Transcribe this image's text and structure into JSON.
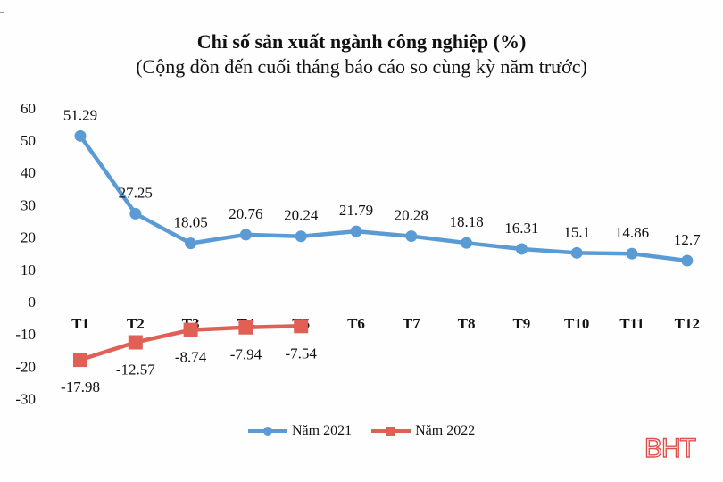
{
  "chart_data": {
    "type": "line",
    "title": "Chỉ số sản xuất ngành công nghiệp (%)",
    "subtitle": "(Cộng dồn đến cuối tháng báo cáo so cùng kỳ năm trước)",
    "xlabel": "",
    "ylabel": "",
    "categories": [
      "T1",
      "T2",
      "T3",
      "T4",
      "T5",
      "T6",
      "T7",
      "T8",
      "T9",
      "T10",
      "T11",
      "T12"
    ],
    "y_ticks": [
      60,
      50,
      40,
      30,
      20,
      10,
      0,
      -10,
      -20,
      -30
    ],
    "ylim": [
      -30,
      60
    ],
    "grid": false,
    "legend_position": "bottom",
    "series": [
      {
        "name": "Năm 2021",
        "color": "#5b9bd5",
        "marker": "circle",
        "values": [
          51.29,
          27.25,
          18.05,
          20.76,
          20.24,
          21.79,
          20.28,
          18.18,
          16.31,
          15.1,
          14.86,
          12.7
        ],
        "labels": [
          "51.29",
          "27.25",
          "18.05",
          "20.76",
          "20.24",
          "21.79",
          "20.28",
          "18.18",
          "16.31",
          "15.1",
          "14.86",
          "12.7"
        ]
      },
      {
        "name": "Năm 2022",
        "color": "#e06055",
        "marker": "square",
        "values": [
          -17.98,
          -12.57,
          -8.74,
          -7.94,
          -7.54
        ],
        "labels": [
          "-17.98",
          "-12.57",
          "-8.74",
          "-7.94",
          "-7.54"
        ]
      }
    ]
  },
  "legend": {
    "item_2021": "Năm 2021",
    "item_2022": "Năm 2022"
  },
  "watermark": "BHT"
}
